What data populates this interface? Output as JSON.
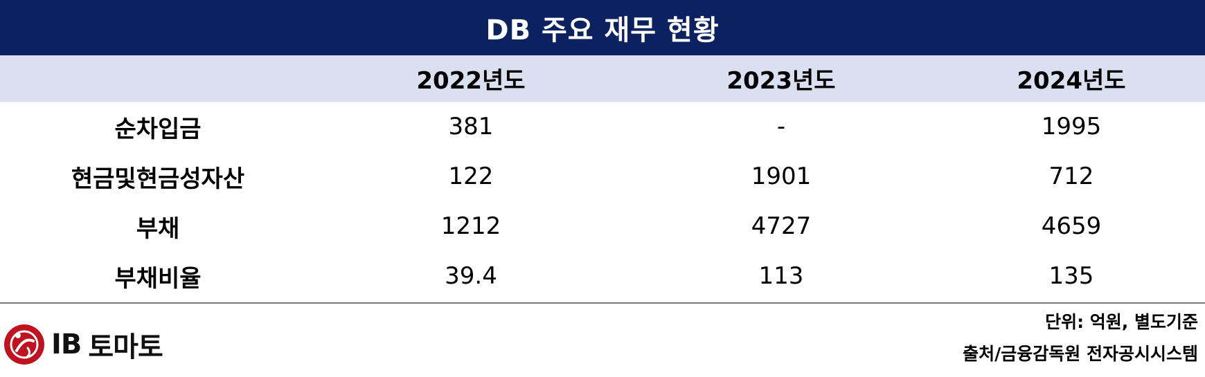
{
  "title": "DB 주요 재무 현황",
  "columns": [
    "2022년도",
    "2023년도",
    "2024년도"
  ],
  "rows": [
    {
      "label": "순차입금",
      "values": [
        "381",
        "-",
        "1995"
      ]
    },
    {
      "label": "현금및현금성자산",
      "values": [
        "122",
        "1901",
        "712"
      ]
    },
    {
      "label": "부채",
      "values": [
        "1212",
        "4727",
        "4659"
      ]
    },
    {
      "label": "부채비율",
      "values": [
        "39.4",
        "113",
        "135"
      ]
    }
  ],
  "footer": {
    "unit_note": "단위: 억원, 별도기준",
    "source_note": "출처/금융감독원 전자공시시스템"
  },
  "logo": {
    "ib": "IB",
    "name": "토마토",
    "icon": "ib-tomato-logo-icon"
  },
  "colors": {
    "title_bg": "#0c2160",
    "header_bg": "#dae0f0",
    "logo_red": "#c1121f"
  }
}
